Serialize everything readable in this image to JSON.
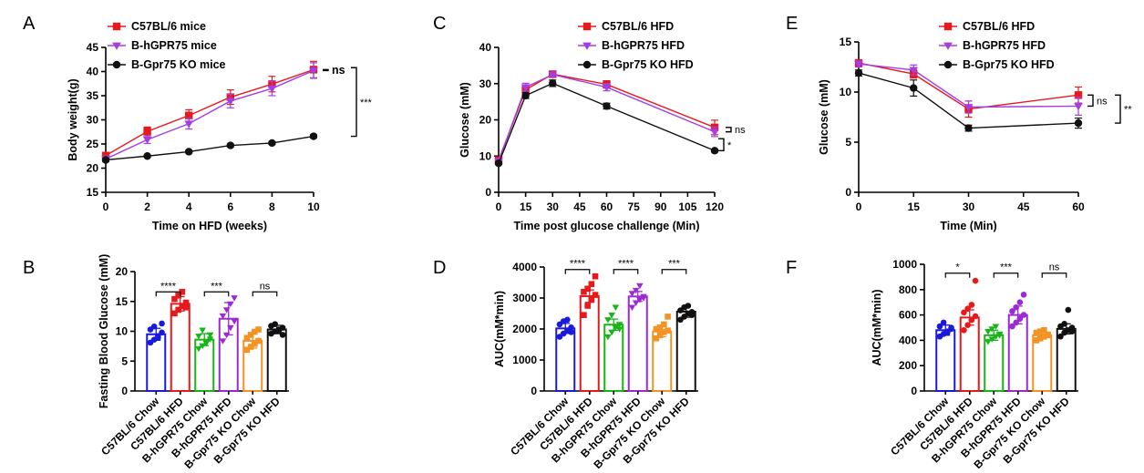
{
  "colors": {
    "c57_chow": "#1a1adb",
    "c57_hfd": "#e8191b",
    "h_chow": "#17b517",
    "h_hfd": "#9b2ad6",
    "ko_chow": "#f39323",
    "ko_hfd": "#111111",
    "c57_line": "#e8191b",
    "h_line": "#a33ee6",
    "ko_line": "#111111"
  },
  "chart_data": [
    {
      "panel": "A",
      "type": "line",
      "xlabel": "Time on HFD (weeks)",
      "ylabel": "Body weight(g)",
      "xlim": [
        0,
        10
      ],
      "ylim": [
        15,
        45
      ],
      "xticks": [
        "0",
        "2",
        "4",
        "6",
        "8",
        "10"
      ],
      "yticks": [
        "15",
        "20",
        "25",
        "30",
        "35",
        "40",
        "45"
      ],
      "legend_position": "top-left",
      "x": [
        0,
        2,
        4,
        6,
        8,
        10
      ],
      "series": [
        {
          "name": "C57BL/6 mice",
          "marker": "square",
          "y": [
            22.6,
            27.6,
            30.9,
            34.7,
            37.4,
            40.4
          ],
          "err": [
            0.6,
            0.9,
            1.2,
            1.5,
            1.6,
            1.7
          ]
        },
        {
          "name": "B-hGPR75 mice",
          "marker": "triangle",
          "y": [
            21.9,
            25.9,
            29.2,
            33.9,
            36.5,
            40.2
          ],
          "err": [
            0.6,
            0.8,
            1.1,
            1.4,
            1.5,
            1.6
          ]
        },
        {
          "name": "B-Gpr75 KO mice",
          "marker": "circle",
          "y": [
            21.7,
            22.5,
            23.4,
            24.7,
            25.2,
            26.6
          ],
          "err": [
            0.2,
            0.2,
            0.3,
            0.3,
            0.3,
            0.3
          ]
        }
      ],
      "annotations": [
        "ns",
        "***"
      ]
    },
    {
      "panel": "C",
      "type": "line",
      "xlabel": "Time post glucose challenge (Min)",
      "ylabel": "Glucose (mM)",
      "xlim": [
        0,
        120
      ],
      "ylim": [
        0,
        40
      ],
      "xticks": [
        "0",
        "15",
        "30",
        "45",
        "60",
        "75",
        "90",
        "105",
        "120"
      ],
      "yticks": [
        "0",
        "10",
        "20",
        "30",
        "40"
      ],
      "legend_position": "top-right",
      "x": [
        0,
        15,
        30,
        60,
        120
      ],
      "series": [
        {
          "name": "C57BL/6 HFD",
          "marker": "square",
          "y": [
            8.9,
            28.3,
            32.6,
            29.8,
            17.9
          ],
          "err": [
            0.4,
            1.3,
            0.6,
            1.0,
            2.0
          ]
        },
        {
          "name": "B-hGPR75 HFD",
          "marker": "triangle",
          "y": [
            8.6,
            29.0,
            32.5,
            29.0,
            16.7
          ],
          "err": [
            0.4,
            1.1,
            0.6,
            1.0,
            1.3
          ]
        },
        {
          "name": "B-Gpr75 KO  HFD",
          "marker": "circle",
          "y": [
            8.0,
            26.7,
            30.1,
            23.8,
            11.5
          ],
          "err": [
            0.3,
            0.8,
            0.9,
            0.8,
            0.4
          ]
        }
      ],
      "annotations": [
        "ns",
        "*"
      ]
    },
    {
      "panel": "E",
      "type": "line",
      "xlabel": "Time (Min)",
      "ylabel": "Glucose (mM)",
      "xlim": [
        0,
        60
      ],
      "ylim": [
        0,
        15
      ],
      "xticks": [
        "0",
        "15",
        "30",
        "45",
        "60"
      ],
      "yticks": [
        "0",
        "5",
        "10",
        "15"
      ],
      "legend_position": "top-right",
      "x": [
        0,
        15,
        30,
        60
      ],
      "series": [
        {
          "name": "C57BL/6 HFD",
          "marker": "square",
          "y": [
            12.9,
            11.8,
            8.3,
            9.7
          ],
          "err": [
            0.3,
            0.4,
            0.8,
            0.8
          ]
        },
        {
          "name": "B-hGPR75 HFD",
          "marker": "triangle",
          "y": [
            12.8,
            12.2,
            8.5,
            8.6
          ],
          "err": [
            0.3,
            0.5,
            0.6,
            0.9
          ]
        },
        {
          "name": "B-Gpr75 KO HFD",
          "marker": "circle",
          "y": [
            11.9,
            10.4,
            6.4,
            6.9
          ],
          "err": [
            0.3,
            0.8,
            0.3,
            0.5
          ]
        }
      ],
      "annotations": [
        "ns",
        "**"
      ]
    },
    {
      "panel": "B",
      "type": "bar",
      "ylabel": "Fasting Blood Glucose (mM)",
      "ylim": [
        0,
        20
      ],
      "yticks": [
        "0",
        "5",
        "10",
        "15",
        "20"
      ],
      "categories": [
        "C57BL/6 Chow",
        "C57BL/6 HFD",
        "B-hGPR75 Chow",
        "B-hGPR75 HFD",
        "B-Gpr75 KO Chow",
        "B-Gpr75 KO  HFD"
      ],
      "markers": [
        "circle",
        "square",
        "triangle",
        "triangle",
        "square",
        "circle"
      ],
      "values": [
        9.5,
        14.6,
        8.6,
        12.1,
        8.4,
        10.3
      ],
      "err": [
        1.0,
        1.2,
        1.0,
        2.7,
        1.2,
        0.7
      ],
      "points": [
        [
          8.1,
          8.6,
          9.2,
          9.8,
          10.3,
          10.8,
          8.9,
          11.3
        ],
        [
          13.0,
          13.6,
          14.2,
          14.8,
          15.4,
          16.0,
          16.6,
          14.0
        ],
        [
          7.1,
          7.6,
          8.2,
          8.7,
          9.2,
          10.2,
          8.0,
          9.4
        ],
        [
          8.4,
          9.4,
          10.6,
          11.7,
          12.6,
          13.6,
          14.6,
          15.6
        ],
        [
          6.9,
          7.4,
          7.9,
          8.4,
          8.9,
          9.4,
          9.9,
          10.3
        ],
        [
          9.6,
          10.0,
          10.3,
          10.6,
          10.9,
          11.2,
          10.1,
          9.4
        ]
      ],
      "comparisons": [
        {
          "pair": [
            0,
            1
          ],
          "label": "****",
          "y": 16.6
        },
        {
          "pair": [
            2,
            3
          ],
          "label": "***",
          "y": 16.6
        },
        {
          "pair": [
            4,
            5
          ],
          "label": "ns",
          "y": 16.6
        }
      ]
    },
    {
      "panel": "D",
      "type": "bar",
      "ylabel": "AUC(mM*min)",
      "ylim": [
        0,
        4000
      ],
      "yticks": [
        "0",
        "1000",
        "2000",
        "3000",
        "4000"
      ],
      "categories": [
        "C57BL/6 Chow",
        "C57BL/6 HFD",
        "B-hGPR75 Chow",
        "B-hGPR75 HFD",
        "B-Gpr75 KO Chow",
        "B-Gpr75 KO HFD"
      ],
      "markers": [
        "circle",
        "square",
        "triangle",
        "triangle",
        "square",
        "circle"
      ],
      "values": [
        2020,
        3060,
        2140,
        3050,
        1920,
        2560
      ],
      "err": [
        160,
        200,
        180,
        160,
        170,
        180
      ],
      "points": [
        [
          1750,
          1850,
          1950,
          2050,
          2150,
          2250,
          2300,
          1900
        ],
        [
          2450,
          2750,
          2950,
          3100,
          3200,
          3300,
          3450,
          3700
        ],
        [
          1750,
          1900,
          2050,
          2150,
          2300,
          2450,
          2700,
          2000
        ],
        [
          2700,
          2850,
          2950,
          3050,
          3150,
          3250,
          3400,
          3000
        ],
        [
          1700,
          1800,
          1900,
          1950,
          2000,
          2050,
          2150,
          2400
        ],
        [
          2300,
          2400,
          2500,
          2550,
          2600,
          2700,
          2750,
          2450
        ]
      ],
      "comparisons": [
        {
          "pair": [
            0,
            1
          ],
          "label": "****",
          "y": 3920
        },
        {
          "pair": [
            2,
            3
          ],
          "label": "****",
          "y": 3920
        },
        {
          "pair": [
            4,
            5
          ],
          "label": "***",
          "y": 3920
        }
      ]
    },
    {
      "panel": "F",
      "type": "bar",
      "ylabel": "AUC(mM*min)",
      "ylim": [
        0,
        1000
      ],
      "yticks": [
        "0",
        "200",
        "400",
        "600",
        "800",
        "1000"
      ],
      "categories": [
        "C57BL/6 Chow",
        "C57BL/6 HFD",
        "B-hGPR75 Chow",
        "B-hGPR75 HFD",
        "B-Gpr75 KO Chow",
        "B-Gpr75 KO HFD"
      ],
      "markers": [
        "circle",
        "circle",
        "triangle",
        "circle",
        "square",
        "circle"
      ],
      "values": [
        480,
        580,
        440,
        600,
        440,
        490
      ],
      "err": [
        40,
        60,
        40,
        70,
        30,
        40
      ],
      "points": [
        [
          430,
          450,
          470,
          490,
          510,
          540,
          460,
          500
        ],
        [
          480,
          520,
          560,
          590,
          620,
          650,
          680,
          870
        ],
        [
          390,
          410,
          430,
          450,
          470,
          490,
          510,
          440
        ],
        [
          510,
          540,
          570,
          600,
          630,
          660,
          700,
          760
        ],
        [
          400,
          415,
          430,
          445,
          460,
          470,
          480,
          440
        ],
        [
          430,
          460,
          480,
          500,
          510,
          530,
          640,
          470
        ]
      ],
      "comparisons": [
        {
          "pair": [
            0,
            1
          ],
          "label": "*",
          "y": 930
        },
        {
          "pair": [
            2,
            3
          ],
          "label": "***",
          "y": 930
        },
        {
          "pair": [
            4,
            5
          ],
          "label": "ns",
          "y": 930
        }
      ]
    }
  ]
}
